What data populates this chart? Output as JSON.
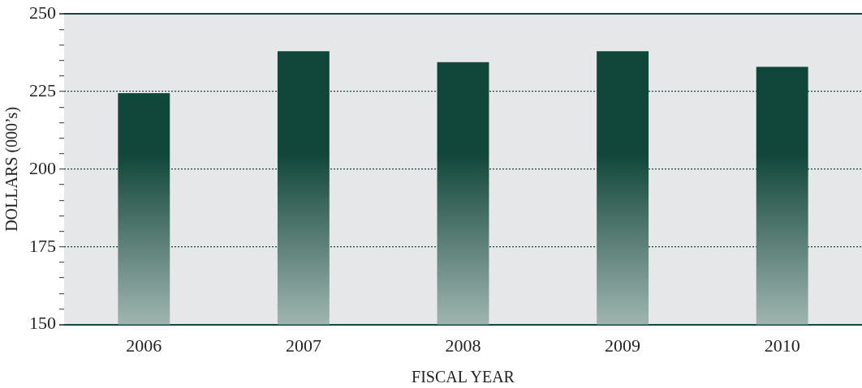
{
  "chart_data": {
    "type": "bar",
    "xlabel": "FISCAL YEAR",
    "ylabel": "DOLLARS (000’s)",
    "categories": [
      "2006",
      "2007",
      "2008",
      "2009",
      "2010"
    ],
    "values": [
      224.5,
      238,
      234.5,
      238,
      233
    ],
    "color": "#11463a",
    "ylim": [
      150,
      250
    ],
    "yticks": [
      150,
      {
        "value": 155,
        "label": null
      },
      {
        "value": 160,
        "label": null
      },
      {
        "value": 165,
        "label": null
      },
      {
        "value": 170,
        "label": null
      },
      175,
      {
        "value": 180,
        "label": null
      },
      {
        "value": 185,
        "label": null
      },
      {
        "value": 190,
        "label": null
      },
      {
        "value": 195,
        "label": null
      },
      200,
      {
        "value": 205,
        "label": null
      },
      {
        "value": 210,
        "label": null
      },
      {
        "value": 215,
        "label": null
      },
      {
        "value": 220,
        "label": null
      },
      225,
      {
        "value": 230,
        "label": null
      },
      {
        "value": 235,
        "label": null
      },
      {
        "value": 240,
        "label": null
      },
      {
        "value": 245,
        "label": null
      },
      250
    ],
    "grid": "y"
  }
}
